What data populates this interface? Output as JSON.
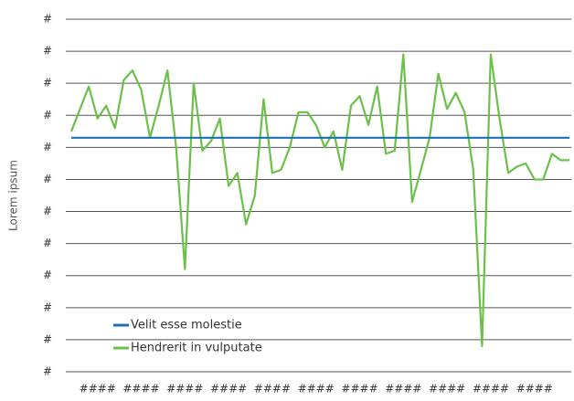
{
  "chart_data": {
    "type": "line",
    "y_label": "Lorem ipsum",
    "categories": [
      null,
      null,
      null,
      "####",
      null,
      null,
      null,
      null,
      "####",
      null,
      null,
      null,
      null,
      "####",
      null,
      null,
      null,
      null,
      "####",
      null,
      null,
      null,
      null,
      "####",
      null,
      null,
      null,
      null,
      "####",
      null,
      null,
      null,
      null,
      "####",
      null,
      null,
      null,
      null,
      "####",
      null,
      null,
      null,
      null,
      "####",
      null,
      null,
      null,
      null,
      "####",
      null,
      null,
      null,
      null,
      "####",
      null,
      null,
      null,
      null
    ],
    "series": [
      {
        "name": "Velit esse molestie",
        "color": "#1f6fb4",
        "values": [
          7.3,
          7.3,
          7.3,
          7.3,
          7.3,
          7.3,
          7.3,
          7.3,
          7.3,
          7.3,
          7.3,
          7.3,
          7.3,
          7.3,
          7.3,
          7.3,
          7.3,
          7.3,
          7.3,
          7.3,
          7.3,
          7.3,
          7.3,
          7.3,
          7.3,
          7.3,
          7.3,
          7.3,
          7.3,
          7.3,
          7.3,
          7.3,
          7.3,
          7.3,
          7.3,
          7.3,
          7.3,
          7.3,
          7.3,
          7.3,
          7.3,
          7.3,
          7.3,
          7.3,
          7.3,
          7.3,
          7.3,
          7.3,
          7.3,
          7.3,
          7.3,
          7.3,
          7.3,
          7.3,
          7.3,
          7.3,
          7.3,
          7.3
        ]
      },
      {
        "name": "Hendrerit in vulputate",
        "color": "#6cc04a",
        "values": [
          7.5,
          8.2,
          8.9,
          7.9,
          8.3,
          7.6,
          9.1,
          9.4,
          8.8,
          7.3,
          8.3,
          9.4,
          7.0,
          3.2,
          9.0,
          6.9,
          7.2,
          7.9,
          5.8,
          6.2,
          4.6,
          5.5,
          8.5,
          6.2,
          6.3,
          7.0,
          8.1,
          8.1,
          7.7,
          7.0,
          7.5,
          6.3,
          8.3,
          8.6,
          7.7,
          8.9,
          6.8,
          6.9,
          9.9,
          5.3,
          6.3,
          7.3,
          9.3,
          8.2,
          8.7,
          8.1,
          6.3,
          0.8,
          9.9,
          7.9,
          6.2,
          6.4,
          6.5,
          6.0,
          6.0,
          6.8,
          6.6,
          6.6
        ]
      }
    ],
    "ylim": [
      0,
      11
    ],
    "yticks": [
      {
        "value": 0,
        "label": "#"
      },
      {
        "value": 1,
        "label": "#"
      },
      {
        "value": 2,
        "label": "#"
      },
      {
        "value": 3,
        "label": "#"
      },
      {
        "value": 4,
        "label": "#"
      },
      {
        "value": 5,
        "label": "#"
      },
      {
        "value": 6,
        "label": "#"
      },
      {
        "value": 7,
        "label": "#"
      },
      {
        "value": 8,
        "label": "#"
      },
      {
        "value": 9,
        "label": "#"
      },
      {
        "value": 10,
        "label": "#"
      },
      {
        "value": 11,
        "label": "#"
      }
    ],
    "grid": true,
    "legend": "lower left"
  }
}
